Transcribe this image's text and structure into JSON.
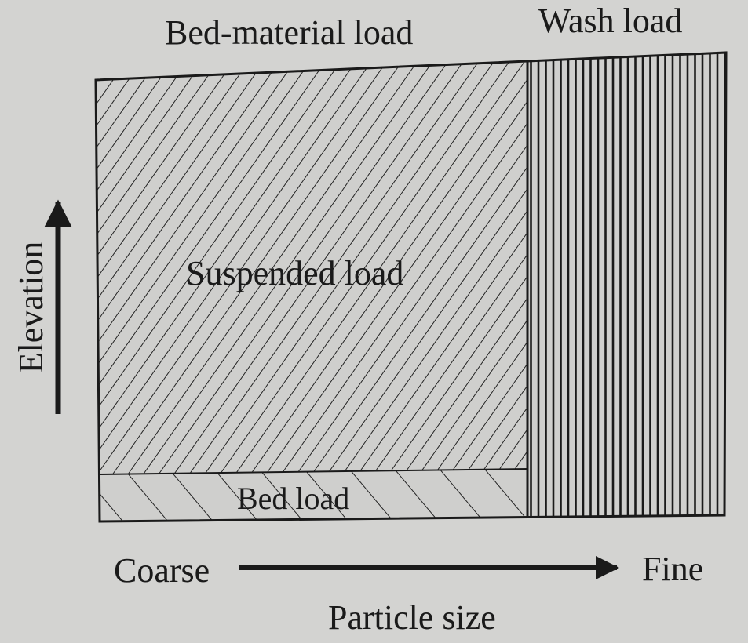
{
  "labels": {
    "bed_material_load": "Bed-material load",
    "wash_load": "Wash load",
    "suspended_load": "Suspended load",
    "bed_load": "Bed load",
    "elevation": "Elevation",
    "coarse": "Coarse",
    "fine": "Fine",
    "particle_size": "Particle size"
  },
  "colors": {
    "background": "#d3d3d1",
    "ink": "#1a1a1a",
    "fill": "#cfcfcd"
  }
}
